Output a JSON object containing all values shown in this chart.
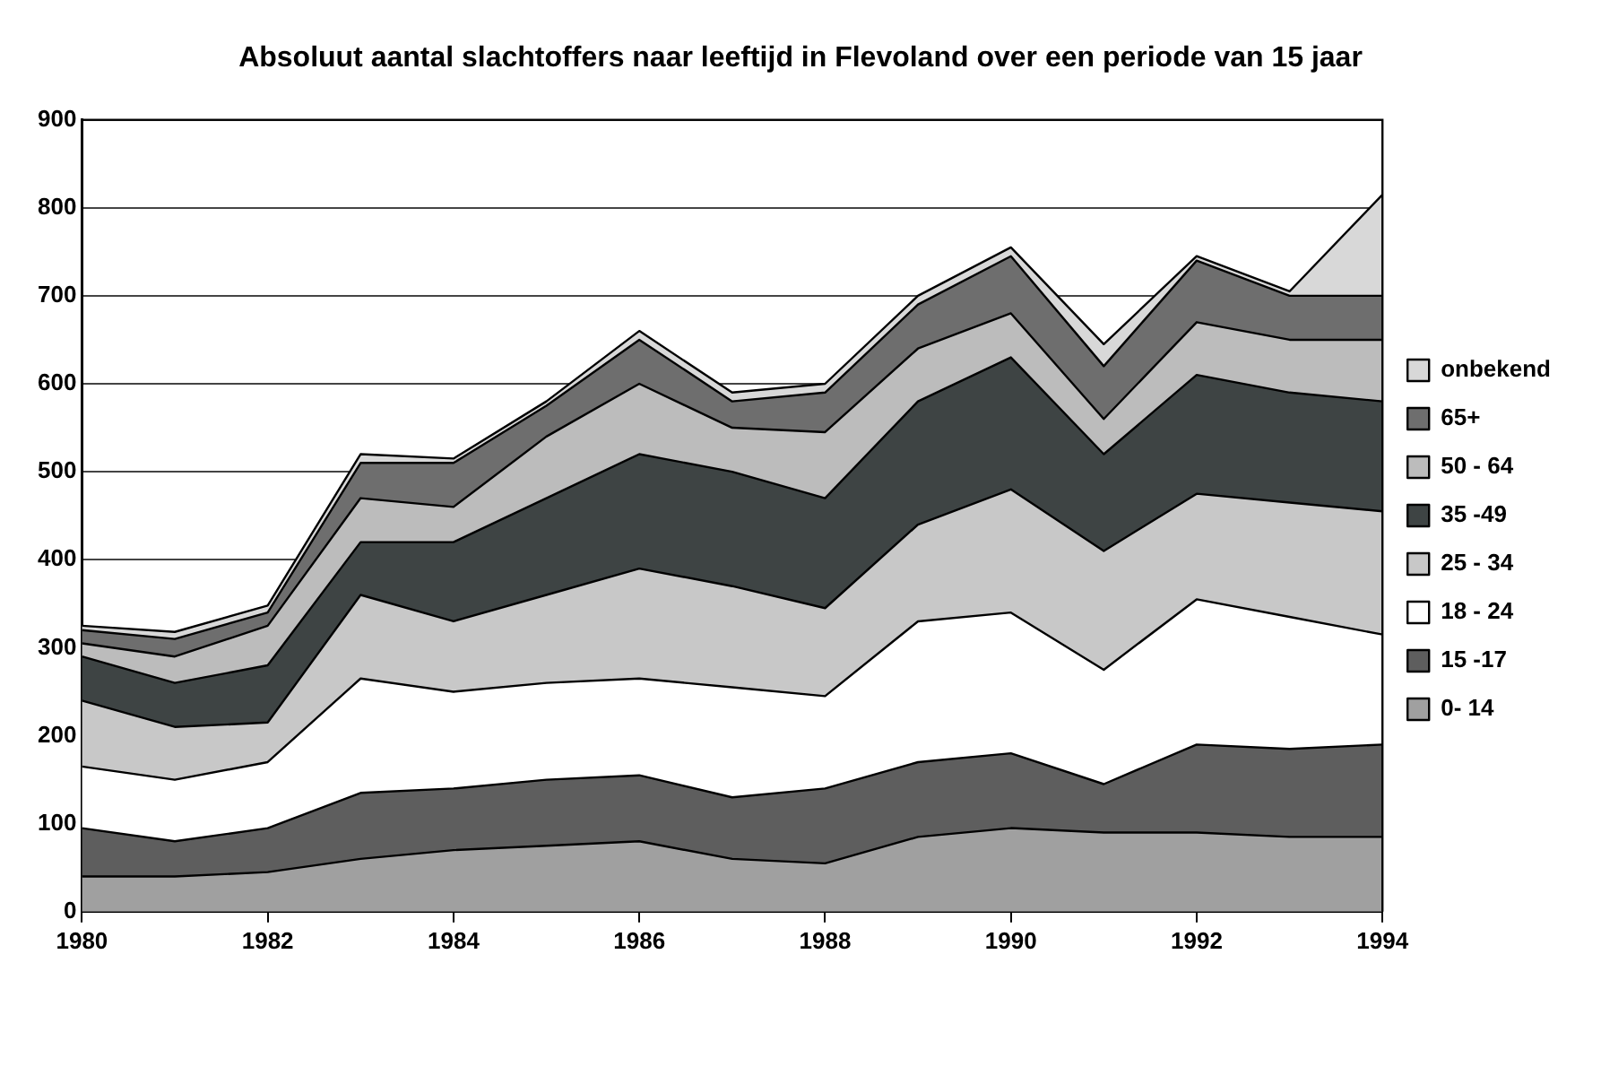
{
  "chart_data": {
    "type": "area",
    "title": "Absoluut aantal slachtoffers naar leeftijd  in Flevoland over een periode van 15 jaar",
    "x": [
      1980,
      1981,
      1982,
      1983,
      1984,
      1985,
      1986,
      1987,
      1988,
      1989,
      1990,
      1991,
      1992,
      1993,
      1994
    ],
    "stacked": true,
    "series": [
      {
        "name": "0- 14",
        "color": "#a0a0a0",
        "values": [
          40,
          40,
          45,
          60,
          70,
          75,
          80,
          60,
          55,
          85,
          95,
          90,
          90,
          85,
          85
        ]
      },
      {
        "name": "15 -17",
        "color": "#5e5e5e",
        "values": [
          55,
          40,
          50,
          75,
          70,
          75,
          75,
          70,
          85,
          85,
          85,
          55,
          100,
          100,
          105
        ]
      },
      {
        "name": "18 - 24",
        "color": "#ffffff",
        "values": [
          70,
          70,
          75,
          130,
          110,
          110,
          110,
          125,
          105,
          160,
          160,
          130,
          165,
          150,
          125
        ]
      },
      {
        "name": "25 - 34",
        "color": "#c8c8c8",
        "values": [
          75,
          60,
          45,
          95,
          80,
          100,
          125,
          115,
          100,
          110,
          140,
          135,
          120,
          130,
          140
        ]
      },
      {
        "name": "35 -49",
        "color": "#3e4444",
        "values": [
          50,
          50,
          65,
          60,
          90,
          110,
          130,
          130,
          125,
          140,
          150,
          110,
          135,
          125,
          125
        ]
      },
      {
        "name": "50 - 64",
        "color": "#bcbcbc",
        "values": [
          15,
          30,
          45,
          50,
          40,
          70,
          80,
          50,
          75,
          60,
          50,
          40,
          60,
          60,
          70
        ]
      },
      {
        "name": "65+",
        "color": "#6e6e6e",
        "values": [
          15,
          20,
          15,
          40,
          50,
          35,
          50,
          30,
          45,
          50,
          65,
          60,
          70,
          50,
          50
        ]
      },
      {
        "name": "onbekend",
        "color": "#d8d8d8",
        "values": [
          5,
          8,
          8,
          10,
          5,
          5,
          10,
          10,
          10,
          10,
          10,
          25,
          5,
          5,
          115
        ]
      }
    ],
    "xlim": [
      1980,
      1994
    ],
    "xticks": [
      1980,
      1982,
      1984,
      1986,
      1988,
      1990,
      1992,
      1994
    ],
    "ylim": [
      0,
      900
    ],
    "yticks": [
      0,
      100,
      200,
      300,
      400,
      500,
      600,
      700,
      800,
      900
    ],
    "grid": "y",
    "legend": "right"
  }
}
